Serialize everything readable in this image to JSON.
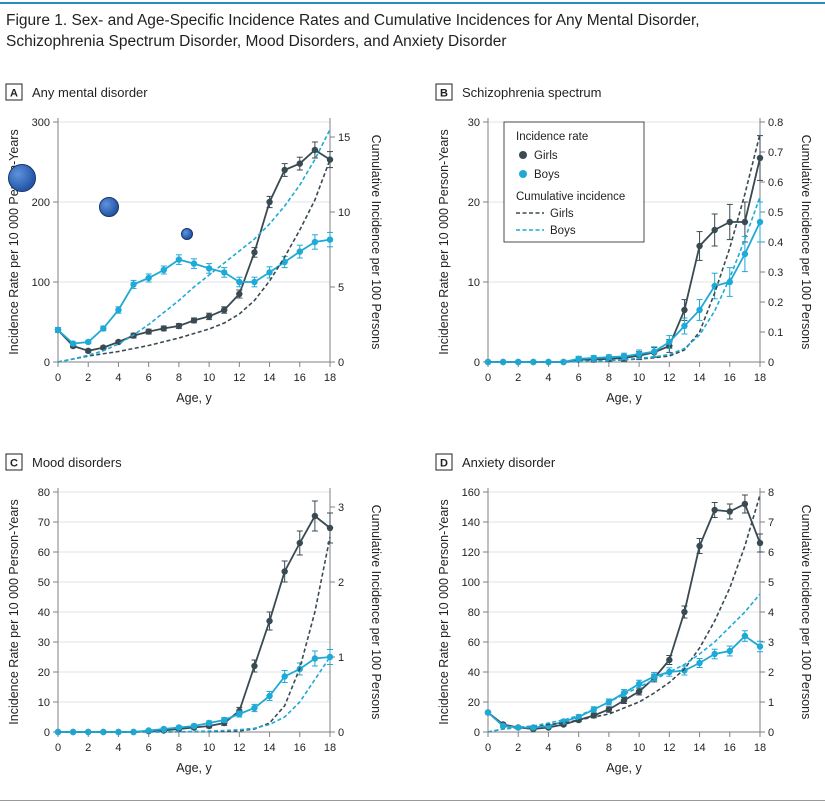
{
  "figure": {
    "title_line1": "Figure 1. Sex- and Age-Specific Incidence Rates and Cumulative Incidences for Any Mental Disorder,",
    "title_line2": "Schizophrenia Spectrum Disorder, Mood Disorders, and Anxiety Disorder"
  },
  "colors": {
    "girls": "#3a4a52",
    "boys": "#1ea9d6",
    "accent": "#2b8ac4",
    "axis": "#808285",
    "grid": "#d9dadb"
  },
  "legend": {
    "incidence_rate_title": "Incidence rate",
    "girls": "Girls",
    "boys": "Boys",
    "cumulative_title": "Cumulative incidence",
    "cum_girls": "Girls",
    "cum_boys": "Boys"
  },
  "decorations": {
    "circles": [
      "blue-circle",
      "blue-circle",
      "blue-circle"
    ]
  },
  "chart_data": [
    {
      "type": "line",
      "letter": "A",
      "title": "Any mental disorder",
      "xlabel": "Age, y",
      "ylabel": "Incidence Rate per 10 000 Person-Years",
      "y2label": "Cumulative Incidence per 100 Persons",
      "xlim": [
        0,
        18
      ],
      "ylim": [
        0,
        300
      ],
      "y2lim": [
        0,
        16
      ],
      "x_ticks": [
        0,
        2,
        4,
        6,
        8,
        10,
        12,
        14,
        16,
        18
      ],
      "y_ticks": [
        0,
        100,
        200,
        300
      ],
      "y2_ticks": [
        0,
        5,
        10,
        15
      ],
      "legend": false,
      "grid": true,
      "x": [
        0,
        1,
        2,
        3,
        4,
        5,
        6,
        7,
        8,
        9,
        10,
        11,
        12,
        13,
        14,
        15,
        16,
        17,
        18
      ],
      "series": [
        {
          "name": "Girls",
          "axis": "rate",
          "values": [
            40,
            20,
            14,
            18,
            25,
            33,
            38,
            42,
            45,
            52,
            57,
            65,
            85,
            137,
            200,
            240,
            248,
            265,
            253
          ],
          "err": [
            3,
            2,
            2,
            2,
            2,
            3,
            3,
            3,
            3,
            3,
            4,
            4,
            5,
            6,
            7,
            8,
            8,
            10,
            10
          ]
        },
        {
          "name": "Boys",
          "axis": "rate",
          "values": [
            40,
            23,
            25,
            42,
            65,
            97,
            105,
            115,
            128,
            123,
            117,
            112,
            100,
            100,
            112,
            125,
            138,
            150,
            153
          ],
          "err": [
            3,
            2,
            2,
            3,
            4,
            5,
            5,
            5,
            6,
            6,
            6,
            6,
            6,
            6,
            7,
            7,
            8,
            9,
            9
          ]
        },
        {
          "name": "Girls",
          "axis": "cumulative",
          "values": [
            0,
            0.2,
            0.4,
            0.55,
            0.7,
            0.9,
            1.1,
            1.35,
            1.6,
            1.9,
            2.2,
            2.6,
            3.2,
            4.1,
            5.4,
            7.0,
            8.8,
            10.8,
            13.5
          ]
        },
        {
          "name": "Boys",
          "axis": "cumulative",
          "values": [
            0,
            0.2,
            0.45,
            0.75,
            1.2,
            1.8,
            2.5,
            3.3,
            4.1,
            5.0,
            5.8,
            6.6,
            7.4,
            8.2,
            9.2,
            10.4,
            11.8,
            13.5,
            15.5
          ]
        }
      ]
    },
    {
      "type": "line",
      "letter": "B",
      "title": "Schizophrenia spectrum",
      "xlabel": "Age, y",
      "ylabel": "Incidence Rate per 10 000 Person-Years",
      "y2label": "Cumulative Incidence per 100 Persons",
      "xlim": [
        0,
        18
      ],
      "ylim": [
        0,
        30
      ],
      "y2lim": [
        0,
        0.8
      ],
      "x_ticks": [
        0,
        2,
        4,
        6,
        8,
        10,
        12,
        14,
        16,
        18
      ],
      "y_ticks": [
        0,
        10,
        20,
        30
      ],
      "y2_ticks": [
        0,
        0.1,
        0.2,
        0.3,
        0.4,
        0.5,
        0.6,
        0.7,
        0.8
      ],
      "legend": true,
      "grid": true,
      "x": [
        0,
        1,
        2,
        3,
        4,
        5,
        6,
        7,
        8,
        9,
        10,
        11,
        12,
        13,
        14,
        15,
        16,
        17,
        18
      ],
      "series": [
        {
          "name": "Girls",
          "axis": "rate",
          "values": [
            0,
            0,
            0,
            0,
            0,
            0,
            0.3,
            0.3,
            0.4,
            0.5,
            0.8,
            1.2,
            2.0,
            6.5,
            14.5,
            16.5,
            17.5,
            17.5,
            25.5
          ],
          "err": [
            0,
            0,
            0,
            0,
            0,
            0.2,
            0.3,
            0.3,
            0.3,
            0.4,
            0.5,
            0.6,
            0.8,
            1.3,
            1.8,
            2.0,
            2.2,
            2.5,
            2.8
          ]
        },
        {
          "name": "Boys",
          "axis": "rate",
          "values": [
            0,
            0,
            0,
            0,
            0,
            0,
            0.4,
            0.5,
            0.6,
            0.7,
            1.0,
            1.3,
            2.5,
            4.5,
            6.5,
            9.5,
            10.0,
            13.5,
            17.5
          ],
          "err": [
            0,
            0,
            0,
            0,
            0,
            0.2,
            0.3,
            0.3,
            0.3,
            0.4,
            0.5,
            0.6,
            0.8,
            1.0,
            1.3,
            1.6,
            1.8,
            2.2,
            2.5
          ]
        },
        {
          "name": "Girls",
          "axis": "cumulative",
          "values": [
            0,
            0,
            0,
            0,
            0,
            0,
            0.001,
            0.003,
            0.005,
            0.007,
            0.01,
            0.014,
            0.02,
            0.04,
            0.1,
            0.23,
            0.38,
            0.56,
            0.76
          ]
        },
        {
          "name": "Boys",
          "axis": "cumulative",
          "values": [
            0,
            0,
            0,
            0,
            0,
            0,
            0.001,
            0.003,
            0.005,
            0.008,
            0.012,
            0.017,
            0.025,
            0.045,
            0.09,
            0.17,
            0.28,
            0.41,
            0.55
          ]
        }
      ]
    },
    {
      "type": "line",
      "letter": "C",
      "title": "Mood disorders",
      "xlabel": "Age, y",
      "ylabel": "Incidence Rate per 10 000 Person-Years",
      "y2label": "Cumulative Incidence per 100 Persons",
      "xlim": [
        0,
        18
      ],
      "ylim": [
        0,
        80
      ],
      "y2lim": [
        0,
        3.2
      ],
      "x_ticks": [
        0,
        2,
        4,
        6,
        8,
        10,
        12,
        14,
        16,
        18
      ],
      "y_ticks": [
        0,
        10,
        20,
        30,
        40,
        50,
        60,
        70,
        80
      ],
      "y2_ticks": [
        0,
        1,
        2,
        3
      ],
      "legend": false,
      "grid": true,
      "x": [
        0,
        1,
        2,
        3,
        4,
        5,
        6,
        7,
        8,
        9,
        10,
        11,
        12,
        13,
        14,
        15,
        16,
        17,
        18
      ],
      "series": [
        {
          "name": "Girls",
          "axis": "rate",
          "values": [
            0,
            0,
            0,
            0,
            0,
            0,
            0.3,
            0.5,
            1.0,
            1.5,
            2.0,
            3.0,
            7.0,
            22.0,
            37.0,
            53.5,
            63.0,
            72.0,
            68.0
          ],
          "err": [
            0,
            0,
            0,
            0,
            0,
            0.2,
            0.3,
            0.3,
            0.4,
            0.5,
            0.6,
            0.8,
            1.2,
            2.0,
            3.0,
            3.5,
            4.0,
            5.0,
            5.0
          ]
        },
        {
          "name": "Boys",
          "axis": "rate",
          "values": [
            0,
            0,
            0,
            0,
            0,
            0,
            0.5,
            1.0,
            1.5,
            2.0,
            3.0,
            4.0,
            6.0,
            8.0,
            12.0,
            18.5,
            21.0,
            24.5,
            25.0
          ],
          "err": [
            0,
            0,
            0,
            0,
            0,
            0.2,
            0.3,
            0.4,
            0.5,
            0.6,
            0.7,
            0.8,
            1.0,
            1.2,
            1.5,
            2.0,
            2.0,
            2.5,
            2.5
          ]
        },
        {
          "name": "Girls",
          "axis": "cumulative",
          "values": [
            0,
            0,
            0,
            0,
            0,
            0,
            0,
            0.001,
            0.002,
            0.004,
            0.006,
            0.009,
            0.015,
            0.04,
            0.12,
            0.35,
            0.85,
            1.6,
            2.6
          ]
        },
        {
          "name": "Boys",
          "axis": "cumulative",
          "values": [
            0,
            0,
            0,
            0,
            0,
            0,
            0.001,
            0.002,
            0.004,
            0.007,
            0.012,
            0.02,
            0.03,
            0.05,
            0.1,
            0.2,
            0.4,
            0.7,
            1.0
          ]
        }
      ]
    },
    {
      "type": "line",
      "letter": "D",
      "title": "Anxiety disorder",
      "xlabel": "Age, y",
      "ylabel": "Incidence Rate per 10 000 Person-Years",
      "y2label": "Cumulative Incidence per 100 Persons",
      "xlim": [
        0,
        18
      ],
      "ylim": [
        0,
        160
      ],
      "y2lim": [
        0,
        8
      ],
      "x_ticks": [
        0,
        2,
        4,
        6,
        8,
        10,
        12,
        14,
        16,
        18
      ],
      "y_ticks": [
        0,
        20,
        40,
        60,
        80,
        100,
        120,
        140,
        160
      ],
      "y2_ticks": [
        0,
        1,
        2,
        3,
        4,
        5,
        6,
        7,
        8
      ],
      "legend": false,
      "grid": true,
      "x": [
        0,
        1,
        2,
        3,
        4,
        5,
        6,
        7,
        8,
        9,
        10,
        11,
        12,
        13,
        14,
        15,
        16,
        17,
        18
      ],
      "series": [
        {
          "name": "Girls",
          "axis": "rate",
          "values": [
            13,
            5,
            3,
            2,
            3,
            5,
            8,
            11,
            15,
            21,
            27,
            36,
            48,
            80,
            124,
            148,
            147,
            152,
            126
          ],
          "err": [
            1,
            1,
            0.8,
            0.8,
            0.8,
            1,
            1.2,
            1.5,
            1.8,
            2,
            2.3,
            2.6,
            3,
            4,
            5,
            5,
            5,
            6,
            6
          ]
        },
        {
          "name": "Boys",
          "axis": "rate",
          "values": [
            13,
            4,
            3,
            3,
            4,
            7,
            10,
            15,
            20,
            26,
            32,
            37,
            40,
            41,
            46,
            52,
            54,
            64,
            57
          ],
          "err": [
            1,
            1,
            0.8,
            0.8,
            1,
            1.2,
            1.5,
            1.8,
            2,
            2.3,
            2.5,
            2.7,
            2.8,
            3,
            3,
            3.2,
            3.3,
            3.5,
            3.5
          ]
        },
        {
          "name": "Girls",
          "axis": "cumulative",
          "values": [
            0,
            0.1,
            0.15,
            0.2,
            0.25,
            0.3,
            0.4,
            0.5,
            0.6,
            0.8,
            1.0,
            1.3,
            1.65,
            2.1,
            2.8,
            3.7,
            4.8,
            6.2,
            7.9
          ]
        },
        {
          "name": "Boys",
          "axis": "cumulative",
          "values": [
            0,
            0.1,
            0.15,
            0.2,
            0.3,
            0.4,
            0.55,
            0.75,
            1.0,
            1.25,
            1.5,
            1.75,
            2.0,
            2.25,
            2.6,
            3.0,
            3.5,
            4.0,
            4.6
          ]
        }
      ]
    }
  ]
}
